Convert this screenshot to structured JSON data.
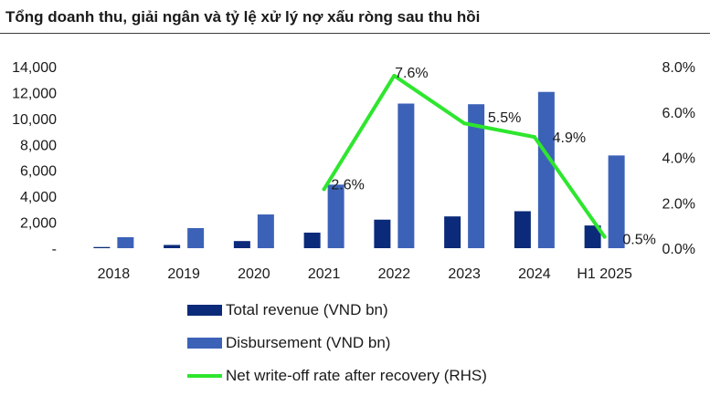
{
  "chart_data": {
    "type": "bar+line",
    "title": "Tổng doanh thu, giải ngân và tỷ lệ xử lý nợ xấu ròng sau thu hồi",
    "categories": [
      "2018",
      "2019",
      "2020",
      "2021",
      "2022",
      "2023",
      "2024",
      "H1 2025"
    ],
    "series": [
      {
        "name": "Total revenue (VND bn)",
        "type": "bar",
        "axis": "left",
        "values": [
          90,
          250,
          550,
          1200,
          2200,
          2450,
          2850,
          1750
        ]
      },
      {
        "name": "Disbursement (VND bn)",
        "type": "bar",
        "axis": "left",
        "values": [
          850,
          1550,
          2600,
          4900,
          11150,
          11100,
          12050,
          7150
        ]
      },
      {
        "name": "Net write-off rate after recovery (RHS)",
        "type": "line",
        "axis": "right",
        "values": [
          null,
          null,
          null,
          2.6,
          7.6,
          5.5,
          4.9,
          0.5
        ],
        "labels": [
          null,
          null,
          null,
          "2.6%",
          "7.6%",
          "5.5%",
          "4.9%",
          "0.5%"
        ]
      }
    ],
    "y_left": {
      "ticks": [
        0,
        2000,
        4000,
        6000,
        8000,
        10000,
        12000,
        14000
      ],
      "tick_labels": [
        "-",
        "2,000",
        "4,000",
        "6,000",
        "8,000",
        "10,000",
        "12,000",
        "14,000"
      ],
      "range": [
        0,
        14000
      ]
    },
    "y_right": {
      "ticks": [
        0,
        2,
        4,
        6,
        8
      ],
      "tick_labels": [
        "0.0%",
        "2.0%",
        "4.0%",
        "6.0%",
        "8.0%"
      ],
      "range": [
        0,
        8
      ]
    },
    "grid": false,
    "legend_position": "bottom-center"
  },
  "colors": {
    "revenue": "#0b2a7a",
    "disbursement": "#3c62b8",
    "line": "#2ee62e",
    "text": "#1a1a1a"
  }
}
